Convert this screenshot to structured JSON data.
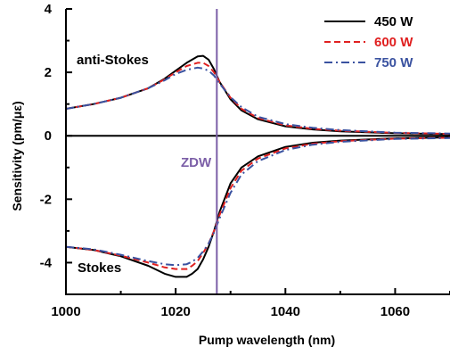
{
  "chart_data": {
    "type": "line",
    "xlabel": "Pump wavelength (nm)",
    "ylabel": "Sensitivity (pm/με)",
    "xlim": [
      1000,
      1070
    ],
    "ylim": [
      -5,
      4
    ],
    "x_ticks": [
      1000,
      1020,
      1040,
      1060
    ],
    "y_ticks": [
      -4,
      -2,
      0,
      2,
      4
    ],
    "grid": false,
    "legend_position": "top-right",
    "zdw_label": "ZDW",
    "zdw_x": 1027.5,
    "zdw_color": "#7b5ea7",
    "annotations": [
      "anti-Stokes",
      "Stokes"
    ],
    "series": [
      {
        "name": "450 W",
        "color": "#000000",
        "dash": "solid",
        "anti_stokes": {
          "x": [
            1000,
            1005,
            1010,
            1015,
            1018,
            1020,
            1022,
            1024,
            1025,
            1026,
            1027,
            1028,
            1030,
            1032,
            1035,
            1040,
            1045,
            1050,
            1060,
            1070
          ],
          "y": [
            0.85,
            1.0,
            1.2,
            1.5,
            1.8,
            2.05,
            2.3,
            2.5,
            2.52,
            2.4,
            2.1,
            1.7,
            1.15,
            0.8,
            0.52,
            0.3,
            0.2,
            0.14,
            0.08,
            0.05
          ]
        },
        "stokes": {
          "x": [
            1000,
            1005,
            1010,
            1015,
            1018,
            1020,
            1022,
            1023,
            1024,
            1025,
            1026,
            1027,
            1028,
            1030,
            1032,
            1035,
            1040,
            1045,
            1050,
            1060,
            1070
          ],
          "y": [
            -3.5,
            -3.6,
            -3.8,
            -4.1,
            -4.35,
            -4.45,
            -4.45,
            -4.35,
            -4.2,
            -3.9,
            -3.5,
            -3.0,
            -2.4,
            -1.5,
            -1.0,
            -0.65,
            -0.35,
            -0.22,
            -0.15,
            -0.08,
            -0.05
          ]
        }
      },
      {
        "name": "600 W",
        "color": "#e02020",
        "dash": "dashed",
        "anti_stokes": {
          "x": [
            1000,
            1005,
            1010,
            1015,
            1018,
            1020,
            1022,
            1024,
            1025,
            1026,
            1027,
            1028,
            1030,
            1032,
            1035,
            1040,
            1045,
            1050,
            1060,
            1070
          ],
          "y": [
            0.85,
            1.0,
            1.2,
            1.5,
            1.78,
            2.0,
            2.2,
            2.3,
            2.3,
            2.2,
            2.0,
            1.7,
            1.2,
            0.85,
            0.56,
            0.33,
            0.22,
            0.16,
            0.09,
            0.06
          ]
        },
        "stokes": {
          "x": [
            1000,
            1005,
            1010,
            1015,
            1018,
            1020,
            1022,
            1023,
            1024,
            1025,
            1026,
            1027,
            1028,
            1030,
            1032,
            1035,
            1040,
            1045,
            1050,
            1060,
            1070
          ],
          "y": [
            -3.5,
            -3.6,
            -3.78,
            -4.0,
            -4.15,
            -4.2,
            -4.2,
            -4.1,
            -3.95,
            -3.7,
            -3.4,
            -3.0,
            -2.5,
            -1.65,
            -1.1,
            -0.72,
            -0.4,
            -0.25,
            -0.17,
            -0.09,
            -0.06
          ]
        }
      },
      {
        "name": "750 W",
        "color": "#3a52a0",
        "dash": "dashdot",
        "anti_stokes": {
          "x": [
            1000,
            1005,
            1010,
            1015,
            1018,
            1020,
            1022,
            1024,
            1025,
            1026,
            1027,
            1028,
            1030,
            1032,
            1035,
            1040,
            1045,
            1050,
            1060,
            1070
          ],
          "y": [
            0.85,
            1.0,
            1.2,
            1.5,
            1.75,
            1.95,
            2.08,
            2.15,
            2.12,
            2.05,
            1.9,
            1.65,
            1.22,
            0.9,
            0.6,
            0.37,
            0.25,
            0.18,
            0.1,
            0.07
          ]
        },
        "stokes": {
          "x": [
            1000,
            1005,
            1010,
            1015,
            1018,
            1020,
            1022,
            1023,
            1024,
            1025,
            1026,
            1027,
            1028,
            1030,
            1032,
            1035,
            1040,
            1045,
            1050,
            1060,
            1070
          ],
          "y": [
            -3.5,
            -3.58,
            -3.75,
            -3.95,
            -4.05,
            -4.08,
            -4.05,
            -3.97,
            -3.85,
            -3.65,
            -3.4,
            -3.05,
            -2.6,
            -1.8,
            -1.22,
            -0.8,
            -0.45,
            -0.28,
            -0.19,
            -0.1,
            -0.07
          ]
        }
      }
    ]
  }
}
